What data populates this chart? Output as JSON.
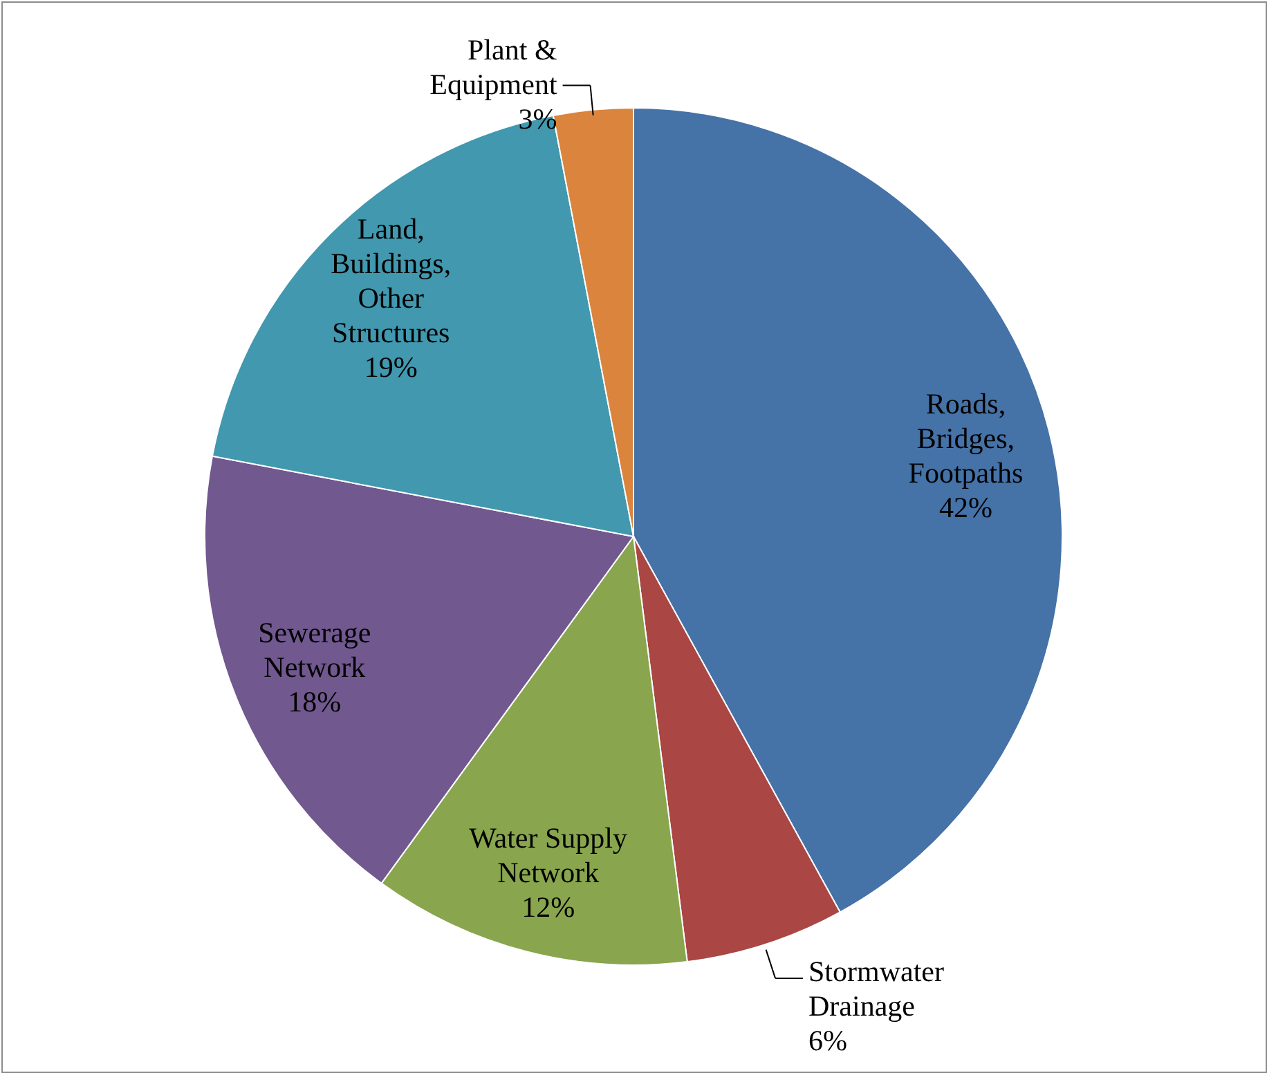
{
  "chart_data": {
    "type": "pie",
    "categories": [
      "Roads, Bridges, Footpaths",
      "Stormwater Drainage",
      "Water Supply Network",
      "Sewerage Network",
      "Land, Buildings, Other Structures",
      "Plant & Equipment"
    ],
    "values": [
      42,
      6,
      12,
      18,
      19,
      3
    ],
    "value_labels": [
      "42%",
      "6%",
      "12%",
      "18%",
      "19%",
      "3%"
    ],
    "colors": [
      "#4572a7",
      "#aa4643",
      "#89a54e",
      "#71588f",
      "#4198af",
      "#db843d"
    ]
  }
}
